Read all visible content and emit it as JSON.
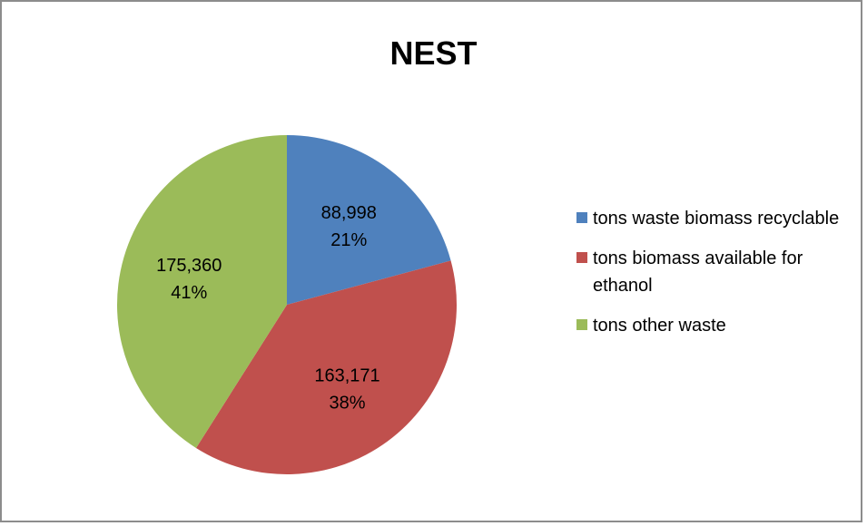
{
  "chart_data": {
    "type": "pie",
    "title": "NEST",
    "categories": [
      "tons waste biomass recyclable",
      "tons biomass available for ethanol",
      "tons other waste"
    ],
    "values": [
      88998,
      163171,
      175360
    ],
    "value_labels": [
      "88,998",
      "163,171",
      "175,360"
    ],
    "percent_labels": [
      "21%",
      "38%",
      "41%"
    ],
    "colors": [
      "#4f81bd",
      "#c0504d",
      "#9bbb59"
    ],
    "legend_position": "right"
  }
}
